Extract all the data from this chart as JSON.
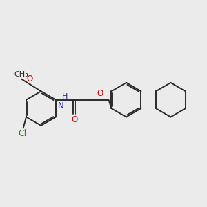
{
  "bg_color": "#ebebeb",
  "bond_color": "#2a2a2a",
  "bond_lw": 1.4,
  "atom_colors": {
    "O": "#cc0000",
    "N": "#2222bb",
    "Cl": "#228822",
    "C": "#2a2a2a"
  },
  "font_size": 8.5,
  "figsize": [
    3.0,
    3.0
  ],
  "dpi": 100
}
